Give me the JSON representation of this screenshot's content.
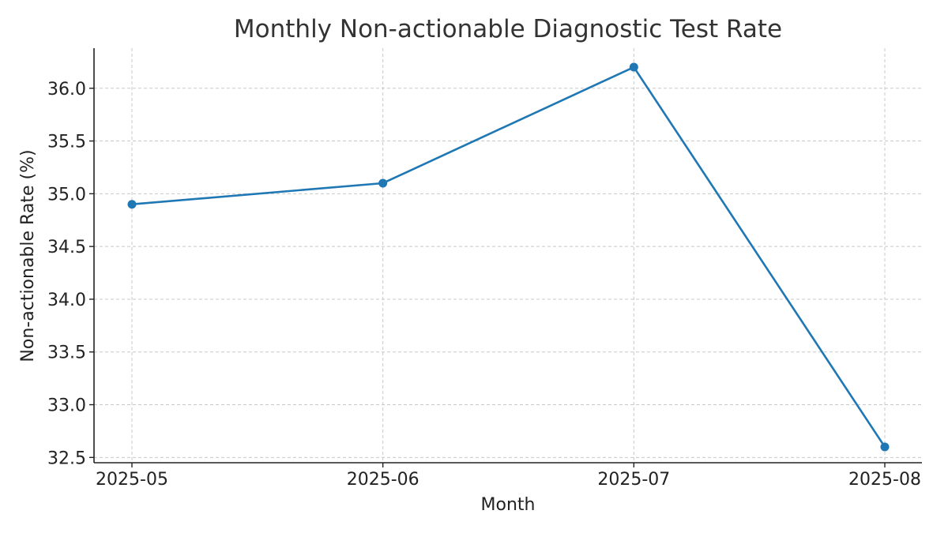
{
  "chart_data": {
    "type": "line",
    "title": "Monthly Non-actionable Diagnostic Test Rate",
    "xlabel": "Month",
    "ylabel": "Non-actionable Rate (%)",
    "categories": [
      "2025-05",
      "2025-06",
      "2025-07",
      "2025-08"
    ],
    "series": [
      {
        "values": [
          34.9,
          35.1,
          36.2,
          32.6
        ],
        "color": "#1f77b4"
      }
    ],
    "ylim": [
      32.45,
      36.38
    ],
    "yticks": [
      "32.5",
      "33.0",
      "33.5",
      "34.0",
      "34.5",
      "35.0",
      "35.5",
      "36.0"
    ],
    "grid": true,
    "markers": true,
    "legend": "none"
  }
}
